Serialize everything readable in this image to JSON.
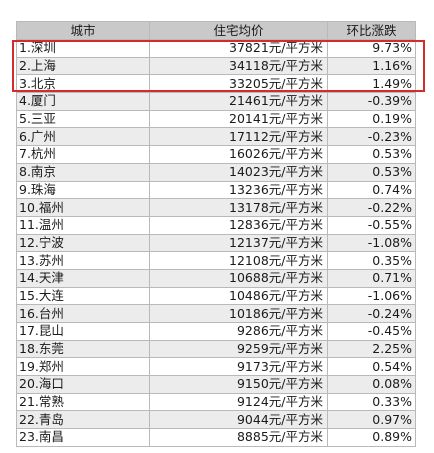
{
  "table": {
    "headers": {
      "city": "城市",
      "price": "住宅均价",
      "change": "环比涨跌"
    },
    "rows": [
      {
        "city": "1.深圳",
        "price": "37821元/平方米",
        "change": "9.73%"
      },
      {
        "city": "2.上海",
        "price": "34118元/平方米",
        "change": "1.16%"
      },
      {
        "city": "3.北京",
        "price": "33205元/平方米",
        "change": "1.49%"
      },
      {
        "city": "4.厦门",
        "price": "21461元/平方米",
        "change": "-0.39%"
      },
      {
        "city": "5.三亚",
        "price": "20141元/平方米",
        "change": "0.19%"
      },
      {
        "city": "6.广州",
        "price": "17112元/平方米",
        "change": "-0.23%"
      },
      {
        "city": "7.杭州",
        "price": "16026元/平方米",
        "change": "0.53%"
      },
      {
        "city": "8.南京",
        "price": "14023元/平方米",
        "change": "0.53%"
      },
      {
        "city": "9.珠海",
        "price": "13236元/平方米",
        "change": "0.74%"
      },
      {
        "city": "10.福州",
        "price": "13178元/平方米",
        "change": "-0.22%"
      },
      {
        "city": "11.温州",
        "price": "12836元/平方米",
        "change": "-0.55%"
      },
      {
        "city": "12.宁波",
        "price": "12137元/平方米",
        "change": "-1.08%"
      },
      {
        "city": "13.苏州",
        "price": "12108元/平方米",
        "change": "0.35%"
      },
      {
        "city": "14.天津",
        "price": "10688元/平方米",
        "change": "0.71%"
      },
      {
        "city": "15.大连",
        "price": "10486元/平方米",
        "change": "-1.06%"
      },
      {
        "city": "16.台州",
        "price": "10186元/平方米",
        "change": "-0.24%"
      },
      {
        "city": "17.昆山",
        "price": "9286元/平方米",
        "change": "-0.45%"
      },
      {
        "city": "18.东莞",
        "price": "9259元/平方米",
        "change": "2.25%"
      },
      {
        "city": "19.郑州",
        "price": "9173元/平方米",
        "change": "0.54%"
      },
      {
        "city": "20.海口",
        "price": "9150元/平方米",
        "change": "0.08%"
      },
      {
        "city": "21.常熟",
        "price": "9124元/平方米",
        "change": "0.33%"
      },
      {
        "city": "22.青岛",
        "price": "9044元/平方米",
        "change": "0.97%"
      },
      {
        "city": "23.南昌",
        "price": "8885元/平方米",
        "change": "0.89%"
      }
    ],
    "highlight_color": "#d62b2b",
    "highlighted_rows": [
      1,
      2,
      3
    ]
  }
}
